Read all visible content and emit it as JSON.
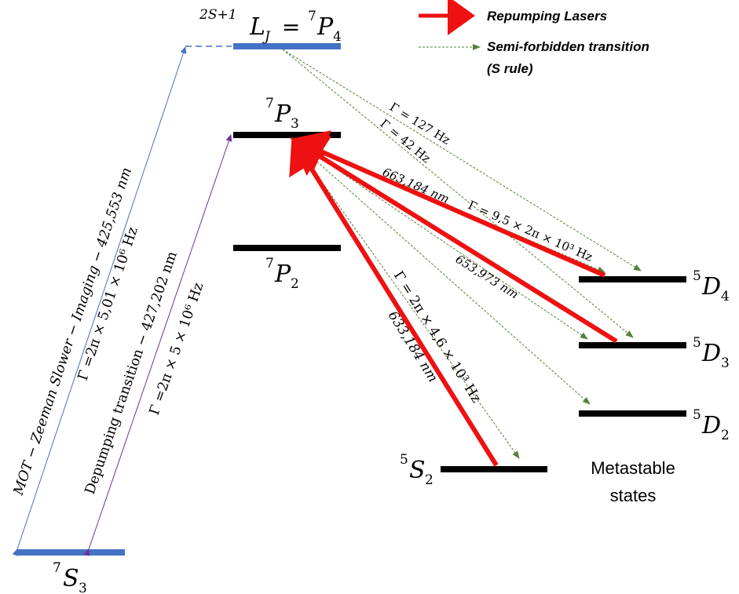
{
  "header": {
    "term_notation": "2S+1",
    "term_L": "L",
    "term_J": "J",
    "equals": " = "
  },
  "legend": {
    "repumping_label": "Repumping Lasers",
    "semi_forbidden_label": "Semi-forbidden transition",
    "semi_forbidden_note": "(S rule)"
  },
  "levels": {
    "p4": {
      "mult": "7",
      "letter": "P",
      "j": "4"
    },
    "p3": {
      "mult": "7",
      "letter": "P",
      "j": "3"
    },
    "p2": {
      "mult": "7",
      "letter": "P",
      "j": "2"
    },
    "s3": {
      "mult": "7",
      "letter": "S",
      "j": "3"
    },
    "s2": {
      "mult": "5",
      "letter": "S",
      "j": "2"
    },
    "d4": {
      "mult": "5",
      "letter": "D",
      "j": "4"
    },
    "d3": {
      "mult": "5",
      "letter": "D",
      "j": "3"
    },
    "d2": {
      "mult": "5",
      "letter": "D",
      "j": "2"
    }
  },
  "metastable_label": [
    "Metastable",
    "states"
  ],
  "transitions": {
    "mot_wavelength": "MOT − Zeeman Slower − Imaging − 425,553 nm",
    "mot_gamma": "Γ =2π × 5,01 × 10⁶ Hz",
    "depumping_wavelength": "Depumping transition − 427,202 nm",
    "depumping_gamma": "Γ =2π × 5 × 10⁶ Hz",
    "gamma_127": "Γ = 127 Hz",
    "gamma_42": "Γ = 42 Hz",
    "d4_wavelength": "663,184 nm",
    "d4_gamma": "Γ = 9,5 × 2π × 10³ Hz",
    "d3_wavelength": "653,973 nm",
    "s2_gamma": "Γ = 2π × 4,6 × 10³ Hz",
    "s2_wavelength": "633,184 nm"
  },
  "colors": {
    "red": "#ee1111",
    "blue_level": "#4472c4",
    "green_dashed": "#548235",
    "black": "#000000",
    "purple": "#7030a0",
    "blue_line": "#4472c4"
  }
}
